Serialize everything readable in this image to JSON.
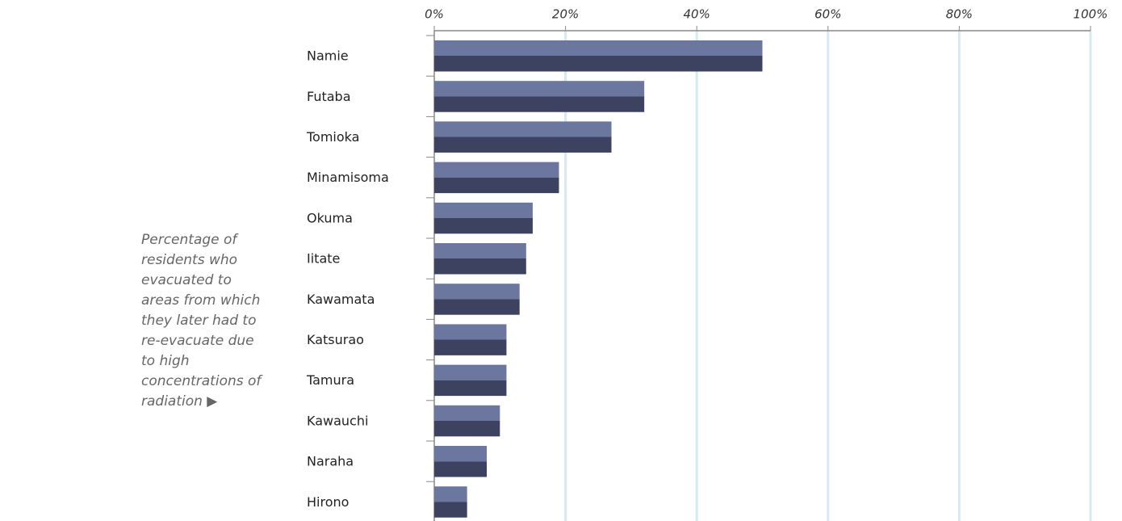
{
  "chart_data": {
    "type": "bar",
    "orientation": "horizontal",
    "annotation": "Percentage of residents who evacuated to areas from which they later had to re-evacuate due to high concentrations of radiation ▶",
    "categories": [
      "Namie",
      "Futaba",
      "Tomioka",
      "Minamisoma",
      "Okuma",
      "Iitate",
      "Kawamata",
      "Katsurao",
      "Tamura",
      "Kawauchi",
      "Naraha",
      "Hirono"
    ],
    "values": [
      50,
      32,
      27,
      19,
      15,
      14,
      13,
      11,
      11,
      10,
      8,
      5
    ],
    "colors": [
      "#6b779e",
      "#3c4260"
    ],
    "xlim": [
      0,
      100
    ],
    "xticks": [
      {
        "value": 0,
        "label": "0%"
      },
      {
        "value": 20,
        "label": "20%"
      },
      {
        "value": 40,
        "label": "40%"
      },
      {
        "value": 60,
        "label": "60%"
      },
      {
        "value": 80,
        "label": "80%"
      },
      {
        "value": 100,
        "label": "100%"
      }
    ],
    "grid": true
  }
}
